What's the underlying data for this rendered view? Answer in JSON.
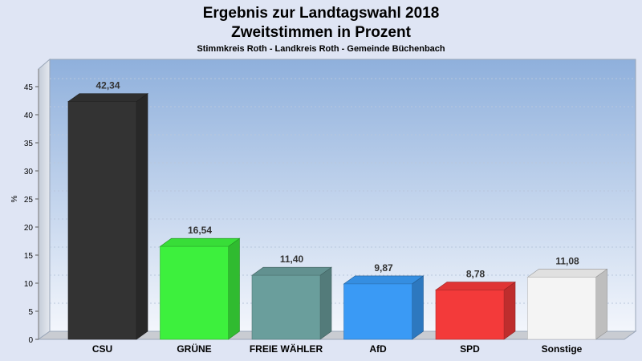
{
  "chart_data": {
    "type": "bar",
    "title_line1": "Ergebnis zur Landtagswahl 2018",
    "title_line2": "Zweitstimmen in Prozent",
    "subtitle": "Stimmkreis Roth - Landkreis Roth - Gemeinde Büchenbach",
    "ylabel": "%",
    "ylim": [
      0,
      45
    ],
    "yticks": [
      0,
      5,
      10,
      15,
      20,
      25,
      30,
      35,
      40,
      45
    ],
    "categories": [
      "CSU",
      "GRÜNE",
      "FREIE WÄHLER",
      "AfD",
      "SPD",
      "Sonstige"
    ],
    "values": [
      42.34,
      16.54,
      11.4,
      9.87,
      8.78,
      11.08
    ],
    "value_labels": [
      "42,34",
      "16,54",
      "11,40",
      "9,87",
      "8,78",
      "11,08"
    ],
    "colors": [
      "#333333",
      "#3df03d",
      "#6a9e9c",
      "#3a9af5",
      "#f33a3a",
      "#f4f4f4"
    ],
    "grid": true,
    "legend": "none"
  }
}
